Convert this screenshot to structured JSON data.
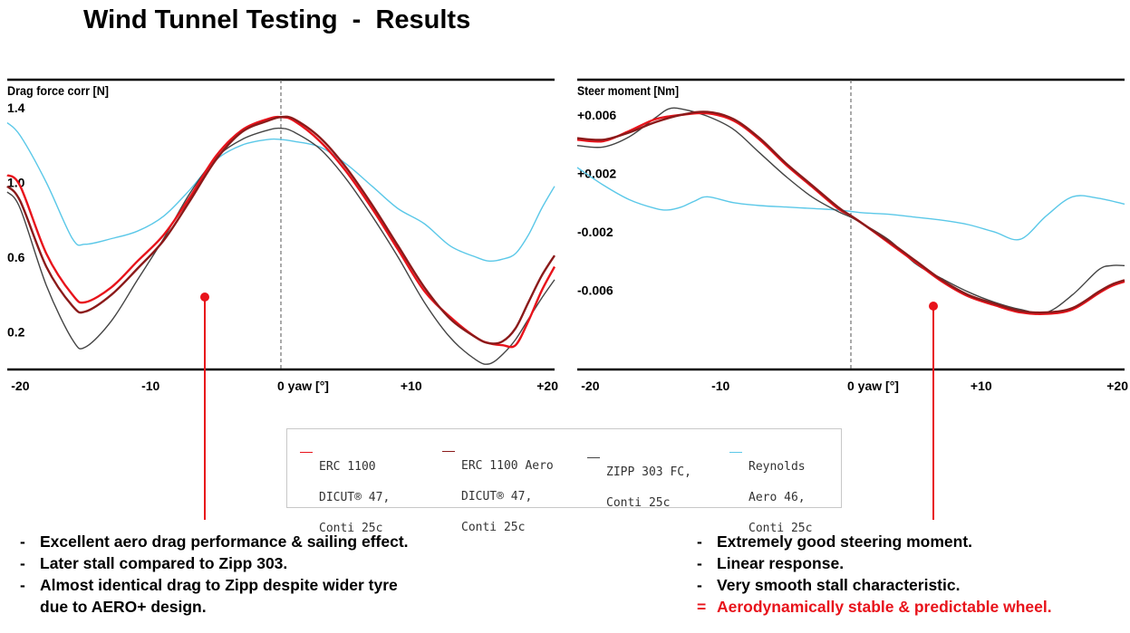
{
  "title": "Wind Tunnel Testing  -  Results",
  "chart_data": [
    {
      "type": "line",
      "ylabel": "Drag force corr [N]",
      "xlabel": "",
      "x_ticks": [
        "-20",
        "-10",
        "0 yaw [°]",
        "+10",
        "+20"
      ],
      "x_tick_values": [
        -20,
        -10,
        0,
        10,
        20
      ],
      "y_ticks": [
        "1.4",
        "1.0",
        "0.6",
        "0.2"
      ],
      "y_tick_values": [
        1.4,
        1.0,
        0.6,
        0.2
      ],
      "xlim": [
        -21,
        21
      ],
      "ylim": [
        0.0,
        1.55
      ],
      "series": [
        {
          "name": "ERC 1100 DICUT® 47, Conti 25c",
          "color": "#e8131b",
          "x": [
            -21,
            -20,
            -18,
            -16,
            -15,
            -13,
            -11,
            -9,
            -7,
            -5,
            -3,
            -1,
            0,
            1,
            3,
            5,
            7,
            9,
            11,
            13,
            15,
            16,
            17,
            18,
            19,
            20,
            21
          ],
          "y": [
            1.04,
            0.98,
            0.62,
            0.4,
            0.36,
            0.44,
            0.58,
            0.72,
            0.92,
            1.14,
            1.28,
            1.34,
            1.35,
            1.33,
            1.22,
            1.06,
            0.86,
            0.64,
            0.42,
            0.28,
            0.17,
            0.14,
            0.13,
            0.13,
            0.26,
            0.42,
            0.55
          ]
        },
        {
          "name": "ERC 1100 Aero DICUT® 47, Conti 25c",
          "color": "#8b1a1a",
          "x": [
            -21,
            -20,
            -18,
            -16,
            -15,
            -13,
            -11,
            -9,
            -7,
            -5,
            -3,
            -1,
            0,
            1,
            3,
            5,
            7,
            9,
            11,
            13,
            15,
            16,
            17,
            18,
            19,
            20,
            21
          ],
          "y": [
            0.98,
            0.9,
            0.55,
            0.34,
            0.31,
            0.4,
            0.54,
            0.69,
            0.9,
            1.12,
            1.27,
            1.33,
            1.35,
            1.34,
            1.24,
            1.08,
            0.88,
            0.66,
            0.44,
            0.27,
            0.17,
            0.14,
            0.15,
            0.22,
            0.36,
            0.5,
            0.61
          ]
        },
        {
          "name": "ZIPP 303 FC, Conti 25c",
          "color": "#444444",
          "x": [
            -21,
            -20,
            -18,
            -16,
            -15,
            -13,
            -11,
            -9,
            -7,
            -5,
            -3,
            -1,
            0,
            1,
            3,
            5,
            7,
            9,
            11,
            13,
            15,
            16,
            17,
            18,
            19,
            20,
            21
          ],
          "y": [
            0.95,
            0.86,
            0.45,
            0.16,
            0.12,
            0.26,
            0.48,
            0.7,
            0.94,
            1.13,
            1.23,
            1.28,
            1.29,
            1.27,
            1.18,
            1.02,
            0.82,
            0.6,
            0.36,
            0.17,
            0.05,
            0.03,
            0.08,
            0.16,
            0.27,
            0.38,
            0.48
          ]
        },
        {
          "name": "Reynolds Aero 46, Conti 25c",
          "color": "#5bc8e8",
          "x": [
            -21,
            -20,
            -18,
            -16,
            -15,
            -13,
            -11,
            -9,
            -7,
            -5,
            -3,
            -1,
            0,
            1,
            3,
            5,
            7,
            9,
            11,
            13,
            15,
            16,
            17,
            18,
            19,
            20,
            21
          ],
          "y": [
            1.32,
            1.25,
            1.0,
            0.7,
            0.67,
            0.7,
            0.74,
            0.82,
            0.96,
            1.12,
            1.2,
            1.23,
            1.23,
            1.22,
            1.19,
            1.1,
            0.98,
            0.86,
            0.78,
            0.66,
            0.6,
            0.58,
            0.59,
            0.62,
            0.72,
            0.86,
            0.98
          ]
        }
      ]
    },
    {
      "type": "line",
      "ylabel": "Steer moment [Nm]",
      "xlabel": "",
      "x_ticks": [
        "-20",
        "-10",
        "0 yaw [°]",
        "+10",
        "+20"
      ],
      "x_tick_values": [
        -20,
        -10,
        0,
        10,
        20
      ],
      "y_ticks": [
        "+0.006",
        "+0.002",
        "-0.002",
        "-0.006"
      ],
      "y_tick_values": [
        0.006,
        0.002,
        -0.002,
        -0.006
      ],
      "xlim": [
        -21,
        21
      ],
      "ylim": [
        -0.0114,
        0.0084
      ],
      "series": [
        {
          "name": "ERC 1100 DICUT® 47, Conti 25c",
          "color": "#e8131b",
          "x": [
            -21,
            -19,
            -17,
            -15,
            -13,
            -11,
            -9,
            -7,
            -5,
            -3,
            -1,
            0,
            1,
            3,
            5,
            7,
            9,
            11,
            13,
            15,
            17,
            19,
            20,
            21
          ],
          "y": [
            0.0043,
            0.0042,
            0.0049,
            0.0057,
            0.006,
            0.0061,
            0.0056,
            0.0043,
            0.0026,
            0.0011,
            -0.0004,
            -0.0009,
            -0.0015,
            -0.0028,
            -0.0041,
            -0.0054,
            -0.0064,
            -0.007,
            -0.0075,
            -0.0076,
            -0.0073,
            -0.0062,
            -0.0057,
            -0.0054
          ]
        },
        {
          "name": "ERC 1100 Aero DICUT® 47, Conti 25c",
          "color": "#8b1a1a",
          "x": [
            -21,
            -19,
            -17,
            -15,
            -13,
            -11,
            -9,
            -7,
            -5,
            -3,
            -1,
            0,
            1,
            3,
            5,
            7,
            9,
            11,
            13,
            15,
            17,
            19,
            20,
            21
          ],
          "y": [
            0.0044,
            0.0043,
            0.0048,
            0.0055,
            0.006,
            0.0062,
            0.0057,
            0.0044,
            0.0027,
            0.0012,
            -0.0003,
            -0.0009,
            -0.0015,
            -0.0027,
            -0.004,
            -0.0053,
            -0.0063,
            -0.0069,
            -0.0074,
            -0.0075,
            -0.0072,
            -0.0061,
            -0.0056,
            -0.0053
          ]
        },
        {
          "name": "ZIPP 303 FC, Conti 25c",
          "color": "#444444",
          "x": [
            -21,
            -19,
            -17,
            -15,
            -14,
            -13,
            -11,
            -9,
            -7,
            -5,
            -3,
            -1,
            0,
            1,
            3,
            5,
            7,
            9,
            11,
            13,
            15,
            17,
            19,
            20,
            21
          ],
          "y": [
            0.0039,
            0.0038,
            0.0045,
            0.0058,
            0.0064,
            0.0064,
            0.0059,
            0.005,
            0.0034,
            0.0018,
            0.0004,
            -0.0006,
            -0.001,
            -0.0015,
            -0.0026,
            -0.0042,
            -0.0052,
            -0.0061,
            -0.0068,
            -0.0073,
            -0.0075,
            -0.0063,
            -0.0046,
            -0.0043,
            -0.0043
          ]
        },
        {
          "name": "Reynolds Aero 46, Conti 25c",
          "color": "#5bc8e8",
          "x": [
            -21,
            -19,
            -17,
            -15,
            -14,
            -13,
            -12,
            -11,
            -9,
            -7,
            -5,
            -3,
            -1,
            0,
            1,
            3,
            5,
            7,
            9,
            11,
            13,
            15,
            17,
            19,
            21
          ],
          "y": [
            0.0024,
            0.0012,
            0.0002,
            -0.0004,
            -0.0005,
            -0.0003,
            0.0001,
            0.0004,
            0.0,
            -0.0002,
            -0.0003,
            -0.0004,
            -0.0005,
            -0.0006,
            -0.0007,
            -0.0008,
            -0.001,
            -0.0012,
            -0.0015,
            -0.002,
            -0.0025,
            -0.0009,
            0.0004,
            0.0003,
            -0.0001
          ]
        }
      ]
    }
  ],
  "legend": [
    {
      "lines": [
        "ERC 1100",
        "DICUT® 47,",
        "Conti 25c"
      ],
      "color": "#e8131b"
    },
    {
      "lines": [
        "ERC 1100 Aero",
        "DICUT® 47,",
        "Conti 25c"
      ],
      "color": "#8b1a1a"
    },
    {
      "lines": [
        "ZIPP 303 FC,",
        "Conti 25c"
      ],
      "color": "#444444"
    },
    {
      "lines": [
        "Reynolds",
        "Aero 46,",
        "Conti 25c"
      ],
      "color": "#5bc8e8"
    }
  ],
  "notes_left": [
    {
      "mark": "-",
      "text": "Excellent aero drag performance & sailing effect."
    },
    {
      "mark": "-",
      "text": "Later stall compared to Zipp 303."
    },
    {
      "mark": "-",
      "text": "Almost identical drag to Zipp despite wider tyre"
    },
    {
      "mark": "",
      "text": "due to AERO+ design."
    }
  ],
  "notes_right": [
    {
      "mark": "-",
      "text": "Extremely good steering moment."
    },
    {
      "mark": "-",
      "text": "Linear response."
    },
    {
      "mark": "-",
      "text": "Very smooth stall characteristic."
    },
    {
      "mark": "=",
      "text": "Aerodynamically stable & predictable wheel."
    }
  ],
  "colors": {
    "accent": "#e8131b"
  }
}
